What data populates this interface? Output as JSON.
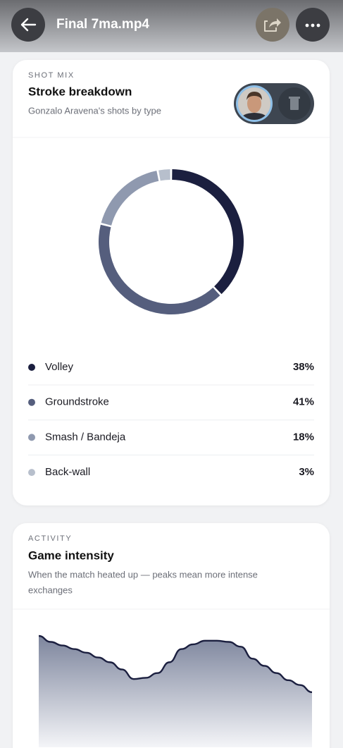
{
  "header": {
    "title": "Final 7ma.mp4"
  },
  "shot_mix": {
    "eyebrow": "SHOT MIX",
    "title": "Stroke breakdown",
    "subtitle": "Gonzalo Aravena's shots by type",
    "chart_data": {
      "type": "pie",
      "categories": [
        "Volley",
        "Groundstroke",
        "Smash / Bandeja",
        "Back-wall"
      ],
      "values": [
        38,
        41,
        18,
        3
      ],
      "value_labels": [
        "38%",
        "41%",
        "18%",
        "3%"
      ],
      "colors": [
        "#1b1f3f",
        "#555e7d",
        "#8f99af",
        "#b7bfcc"
      ]
    }
  },
  "activity": {
    "eyebrow": "ACTIVITY",
    "title": "Game intensity",
    "subtitle": [
      "When the match heated up — peaks mean more intense",
      "exchanges"
    ],
    "chart_data": {
      "type": "area",
      "values": [
        93,
        88,
        85,
        82,
        79,
        75,
        71,
        65,
        57,
        58,
        62,
        71,
        82,
        86,
        89,
        89,
        88,
        84,
        74,
        68,
        62,
        56,
        52,
        46
      ],
      "color": "#1b1f3f"
    }
  }
}
